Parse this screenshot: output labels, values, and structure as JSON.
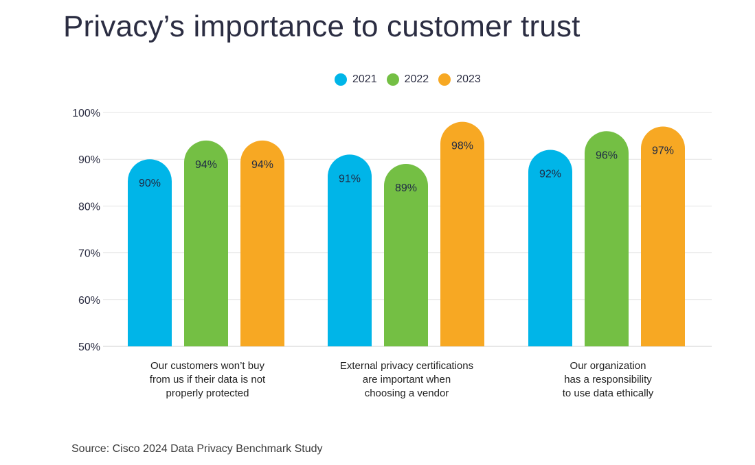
{
  "chart_data": {
    "type": "bar",
    "title": "Privacy’s importance to customer trust",
    "categories": [
      "Our customers won’t buy\nfrom us if their data is not\nproperly protected",
      "External privacy certifications\nare important when\nchoosing a vendor",
      "Our organization\nhas a responsibility\nto use data ethically"
    ],
    "series": [
      {
        "name": "2021",
        "color": "#00b5e8",
        "values": [
          90,
          91,
          92
        ]
      },
      {
        "name": "2022",
        "color": "#74bf44",
        "values": [
          94,
          89,
          96
        ]
      },
      {
        "name": "2023",
        "color": "#f7a823",
        "values": [
          94,
          98,
          97
        ]
      }
    ],
    "value_labels": [
      [
        "90%",
        "91%",
        "92%"
      ],
      [
        "94%",
        "89%",
        "96%"
      ],
      [
        "94%",
        "98%",
        "97%"
      ]
    ],
    "y_ticks": [
      "50%",
      "60%",
      "70%",
      "80%",
      "90%",
      "100%"
    ],
    "ylim": [
      50,
      100
    ],
    "grid": true,
    "legend_position": "top-center",
    "source": "Source: Cisco 2024 Data Privacy Benchmark Study"
  }
}
